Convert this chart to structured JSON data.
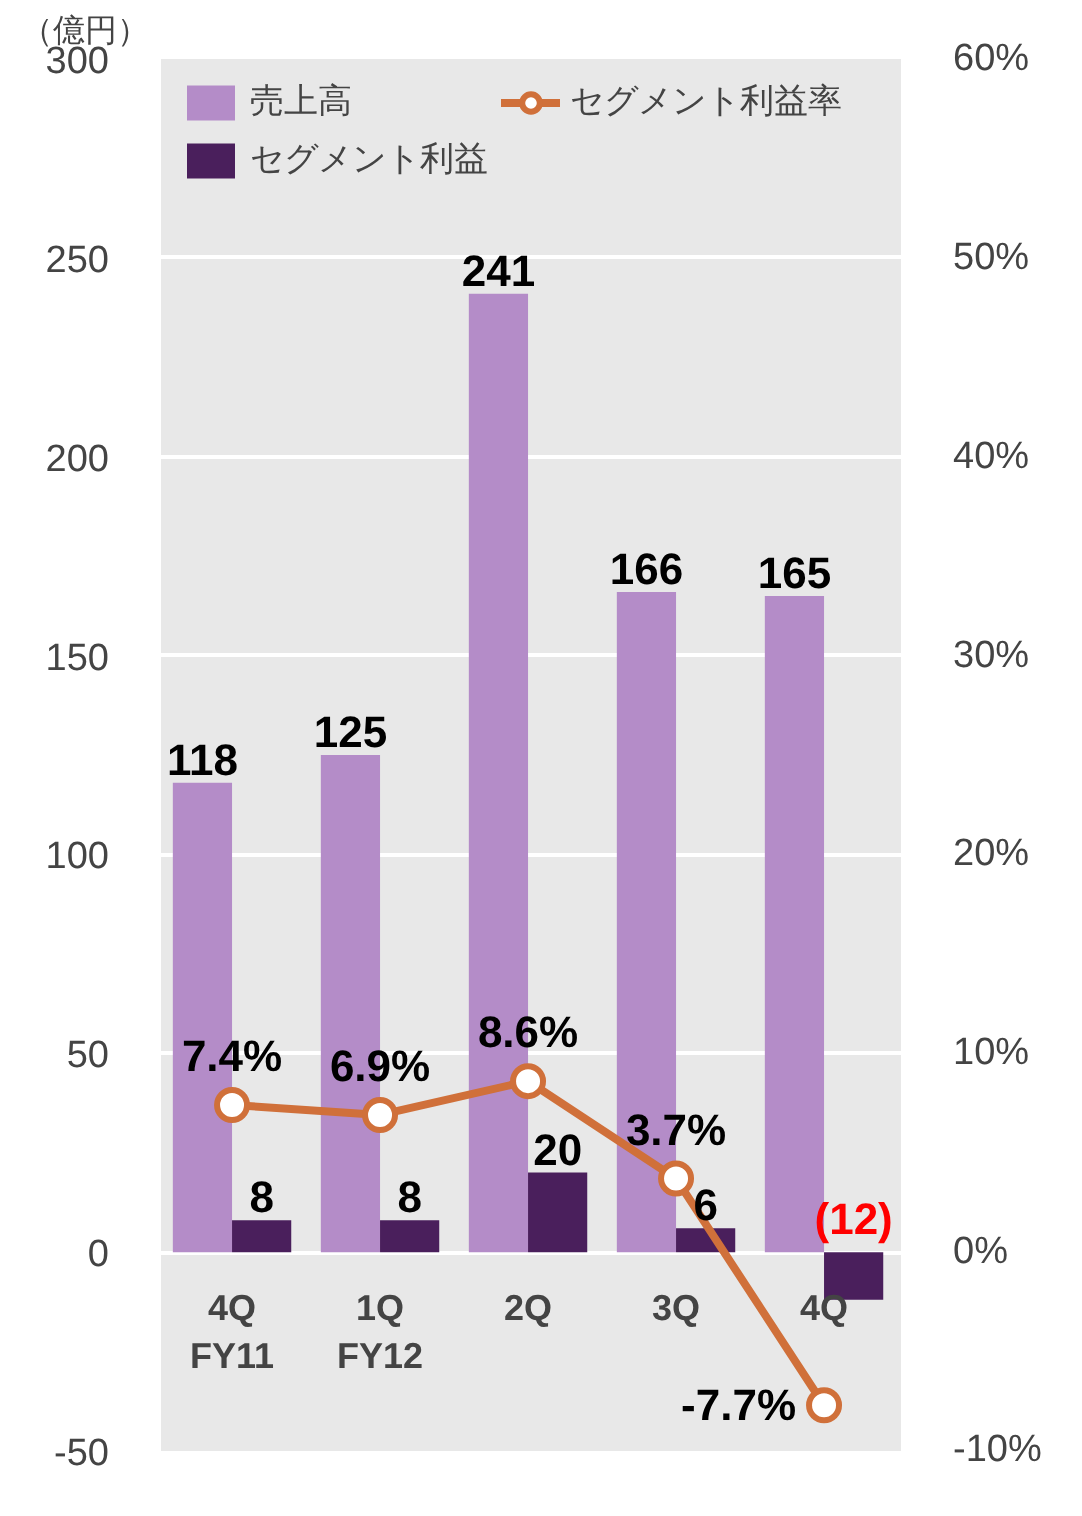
{
  "chart_data": {
    "type": "bar",
    "ylabel": "（億円）",
    "categories": [
      "4Q\nFY11",
      "1Q\nFY12",
      "2Q",
      "3Q",
      "4Q"
    ],
    "series": [
      {
        "name": "売上高",
        "color": "#b48cc8",
        "values": [
          118,
          125,
          241,
          166,
          165
        ],
        "value_labels": [
          "118",
          "125",
          "241",
          "166",
          "165"
        ]
      },
      {
        "name": "セグメント利益",
        "color": "#4a1f5c",
        "values": [
          8,
          8,
          20,
          6,
          -12
        ],
        "value_labels": [
          "8",
          "8",
          "20",
          "6",
          "(12)"
        ]
      },
      {
        "name": "セグメント利益率",
        "type": "line",
        "axis": "y2",
        "color": "#d0703a",
        "marker": "circle",
        "values": [
          7.4,
          6.9,
          8.6,
          3.7,
          -7.7
        ],
        "value_labels": [
          "7.4%",
          "6.9%",
          "8.6%",
          "3.7%",
          "-7.7%"
        ]
      }
    ],
    "ylim": [
      -50,
      300
    ],
    "yticks": [
      -50,
      0,
      50,
      100,
      150,
      200,
      250,
      300
    ],
    "y2lim": [
      -10,
      60
    ],
    "y2ticks": [
      {
        "value": -10,
        "label": "-10%"
      },
      {
        "value": 0,
        "label": "0%"
      },
      {
        "value": 10,
        "label": "10%"
      },
      {
        "value": 20,
        "label": "20%"
      },
      {
        "value": 30,
        "label": "30%"
      },
      {
        "value": 40,
        "label": "40%"
      },
      {
        "value": 50,
        "label": "50%"
      },
      {
        "value": 60,
        "label": "60%"
      }
    ],
    "grid": "y",
    "legend": "top left"
  }
}
